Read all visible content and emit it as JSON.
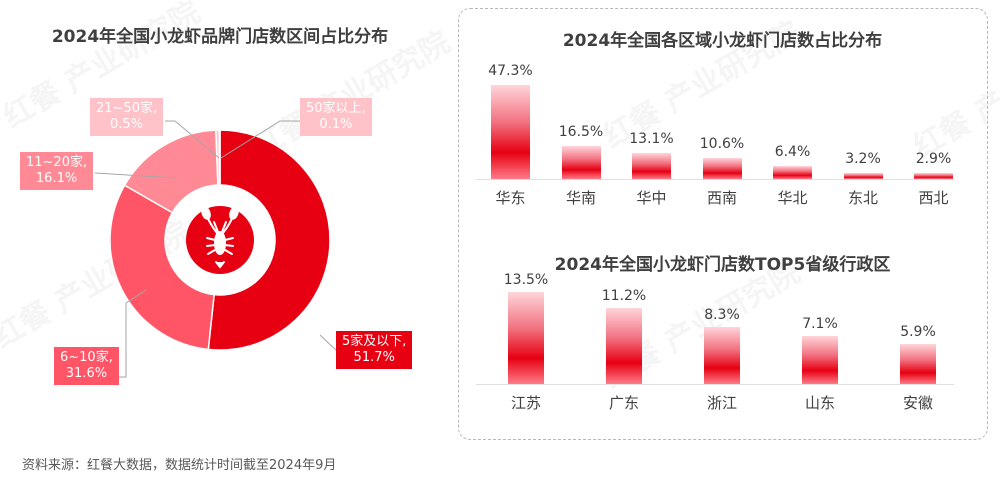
{
  "left_chart": {
    "title": "2024年全国小龙虾品牌门店数区间占比分布",
    "center_icon": "crayfish-icon"
  },
  "right_top_chart": {
    "title": "2024年全国各区域小龙虾门店数占比分布"
  },
  "right_bottom_chart": {
    "title": "2024年全国小龙虾门店数TOP5省级行政区"
  },
  "watermark": "红餐 产业研究院",
  "source": "资料来源：红餐大数据，数据统计时间截至2024年9月",
  "chart_data": [
    {
      "type": "pie",
      "title": "2024年全国小龙虾品牌门店数区间占比分布",
      "donut": true,
      "categories": [
        "5家及以下",
        "6~10家",
        "11~20家",
        "21~50家",
        "50家以上"
      ],
      "values": [
        51.7,
        31.6,
        16.1,
        0.5,
        0.1
      ],
      "unit": "%",
      "labels": [
        "5家及以下,\n51.7%",
        "6~10家,\n31.6%",
        "11~20家,\n16.1%",
        "21~50家,\n0.5%",
        "50家以上,\n0.1%"
      ],
      "colors": [
        "#e60012",
        "#ff5566",
        "#ff8a95",
        "#ffc2c8",
        "#ffd0d5"
      ]
    },
    {
      "type": "bar",
      "title": "2024年全国各区域小龙虾门店数占比分布",
      "categories": [
        "华东",
        "华南",
        "华中",
        "西南",
        "华北",
        "东北",
        "西北"
      ],
      "values": [
        47.3,
        16.5,
        13.1,
        10.6,
        6.4,
        3.2,
        2.9
      ],
      "value_labels": [
        "47.3%",
        "16.5%",
        "13.1%",
        "10.6%",
        "6.4%",
        "3.2%",
        "2.9%"
      ],
      "unit": "%",
      "xlabel": "",
      "ylabel": "",
      "grid": false,
      "bar_color": "#e60012"
    },
    {
      "type": "bar",
      "title": "2024年全国小龙虾门店数TOP5省级行政区",
      "categories": [
        "江苏",
        "广东",
        "浙江",
        "山东",
        "安徽"
      ],
      "values": [
        13.5,
        11.2,
        8.3,
        7.1,
        5.9
      ],
      "value_labels": [
        "13.5%",
        "11.2%",
        "8.3%",
        "7.1%",
        "5.9%"
      ],
      "unit": "%",
      "xlabel": "",
      "ylabel": "",
      "grid": false,
      "bar_color": "#e60012"
    }
  ]
}
